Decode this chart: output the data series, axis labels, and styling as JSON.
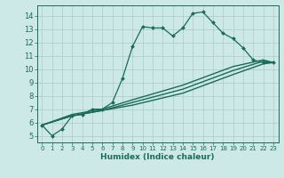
{
  "xlabel": "Humidex (Indice chaleur)",
  "bg_color": "#cce9e7",
  "grid_color": "#aaccca",
  "line_color": "#1a6b5a",
  "xlim": [
    -0.5,
    23.5
  ],
  "ylim": [
    4.5,
    14.8
  ],
  "yticks": [
    5,
    6,
    7,
    8,
    9,
    10,
    11,
    12,
    13,
    14
  ],
  "xticks": [
    0,
    1,
    2,
    3,
    4,
    5,
    6,
    7,
    8,
    9,
    10,
    11,
    12,
    13,
    14,
    15,
    16,
    17,
    18,
    19,
    20,
    21,
    22,
    23
  ],
  "series": [
    {
      "x": [
        0,
        1,
        2,
        3,
        4,
        5,
        6,
        7,
        8,
        9,
        10,
        11,
        12,
        13,
        14,
        15,
        16,
        17,
        18,
        19,
        20,
        21,
        22,
        23
      ],
      "y": [
        5.8,
        5.0,
        5.5,
        6.5,
        6.6,
        7.0,
        7.0,
        7.5,
        9.3,
        11.7,
        13.2,
        13.1,
        13.1,
        12.5,
        13.1,
        14.2,
        14.3,
        13.5,
        12.7,
        12.3,
        11.6,
        10.7,
        10.5,
        10.5
      ],
      "marker": "D",
      "markersize": 2.0,
      "linewidth": 0.9
    },
    {
      "x": [
        0,
        3,
        6,
        9,
        14,
        19,
        22,
        23
      ],
      "y": [
        5.8,
        6.5,
        6.9,
        7.5,
        8.5,
        9.9,
        10.6,
        10.5
      ],
      "marker": null,
      "linewidth": 1.0
    },
    {
      "x": [
        0,
        3,
        6,
        9,
        14,
        19,
        22,
        23
      ],
      "y": [
        5.8,
        6.5,
        6.9,
        7.3,
        8.2,
        9.6,
        10.4,
        10.5
      ],
      "marker": null,
      "linewidth": 1.0
    },
    {
      "x": [
        0,
        3,
        6,
        9,
        14,
        19,
        22,
        23
      ],
      "y": [
        5.8,
        6.6,
        7.0,
        7.7,
        8.8,
        10.2,
        10.7,
        10.5
      ],
      "marker": null,
      "linewidth": 1.0
    }
  ]
}
